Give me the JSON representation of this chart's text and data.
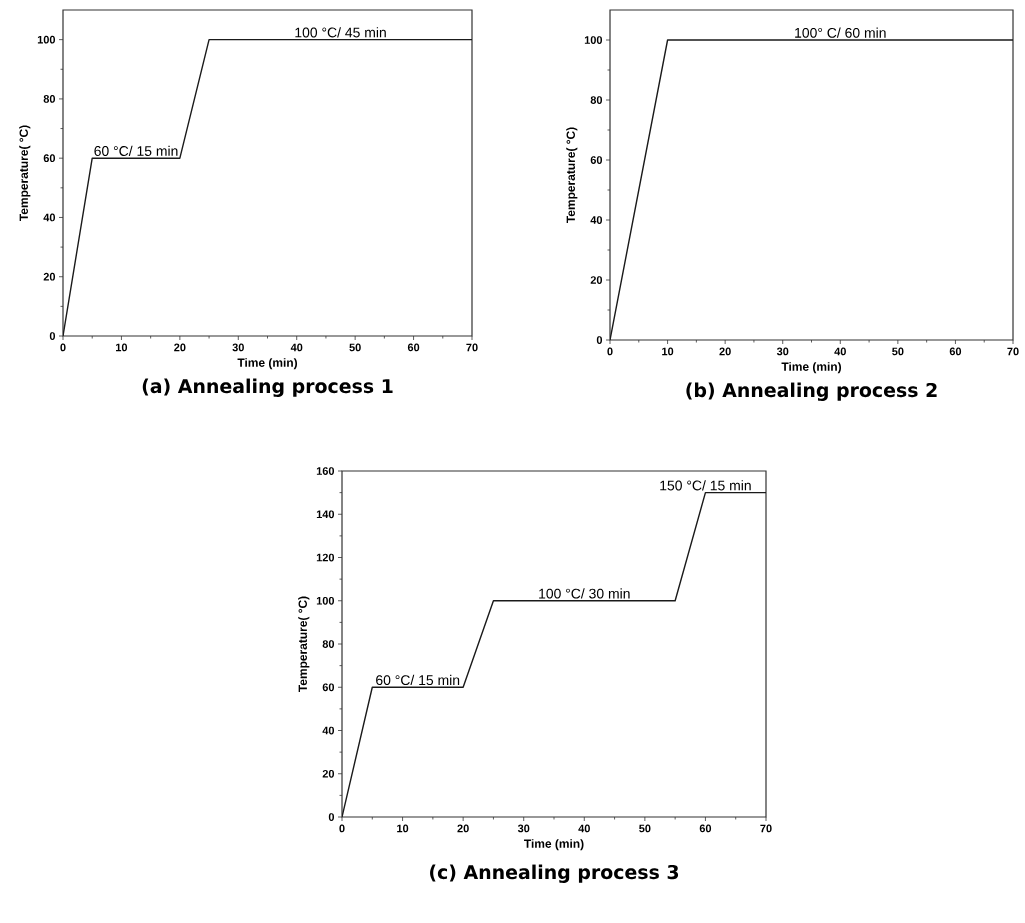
{
  "chart_data": [
    {
      "type": "line",
      "title": "(a) Annealing process 1",
      "xlabel": "Time (min)",
      "ylabel": "Temperature( °C)",
      "series": [
        {
          "color": "#1a1a1a",
          "x": [
            0,
            5,
            20,
            25,
            70
          ],
          "values": [
            0,
            60,
            60,
            100,
            100
          ]
        }
      ],
      "xlim": [
        0,
        70
      ],
      "ylim": [
        0,
        110
      ],
      "xticks": [
        0,
        10,
        20,
        30,
        40,
        50,
        60,
        70
      ],
      "yticks": [
        0,
        20,
        40,
        60,
        80,
        100
      ],
      "annotations": [
        {
          "text": "60 °C/ 15 min",
          "x": 12.5,
          "y": 60
        },
        {
          "text": "100 °C/ 45 min",
          "x": 47.5,
          "y": 100
        }
      ]
    },
    {
      "type": "line",
      "title": "(b) Annealing process 2",
      "xlabel": "Time (min)",
      "ylabel": "Temperature( °C)",
      "series": [
        {
          "color": "#1a1a1a",
          "x": [
            0,
            10,
            70
          ],
          "values": [
            0,
            100,
            100
          ]
        }
      ],
      "xlim": [
        0,
        70
      ],
      "ylim": [
        0,
        110
      ],
      "xticks": [
        0,
        10,
        20,
        30,
        40,
        50,
        60,
        70
      ],
      "yticks": [
        0,
        20,
        40,
        60,
        80,
        100
      ],
      "annotations": [
        {
          "text": "100° C/ 60 min",
          "x": 40,
          "y": 100
        }
      ]
    },
    {
      "type": "line",
      "title": "(c) Annealing process 3",
      "xlabel": "Time (min)",
      "ylabel": "Temperature( °C)",
      "series": [
        {
          "color": "#1a1a1a",
          "x": [
            0,
            5,
            20,
            25,
            55,
            60,
            70
          ],
          "values": [
            0,
            60,
            60,
            100,
            100,
            150,
            150
          ]
        }
      ],
      "xlim": [
        0,
        70
      ],
      "ylim": [
        0,
        160
      ],
      "xticks": [
        0,
        10,
        20,
        30,
        40,
        50,
        60,
        70
      ],
      "yticks": [
        0,
        20,
        40,
        60,
        80,
        100,
        120,
        140,
        160
      ],
      "annotations": [
        {
          "text": "60 °C/ 15 min",
          "x": 12.5,
          "y": 60
        },
        {
          "text": "100 °C/ 30 min",
          "x": 40,
          "y": 100
        },
        {
          "text": "150 °C/ 15 min",
          "x": 60,
          "y": 150
        }
      ]
    }
  ]
}
